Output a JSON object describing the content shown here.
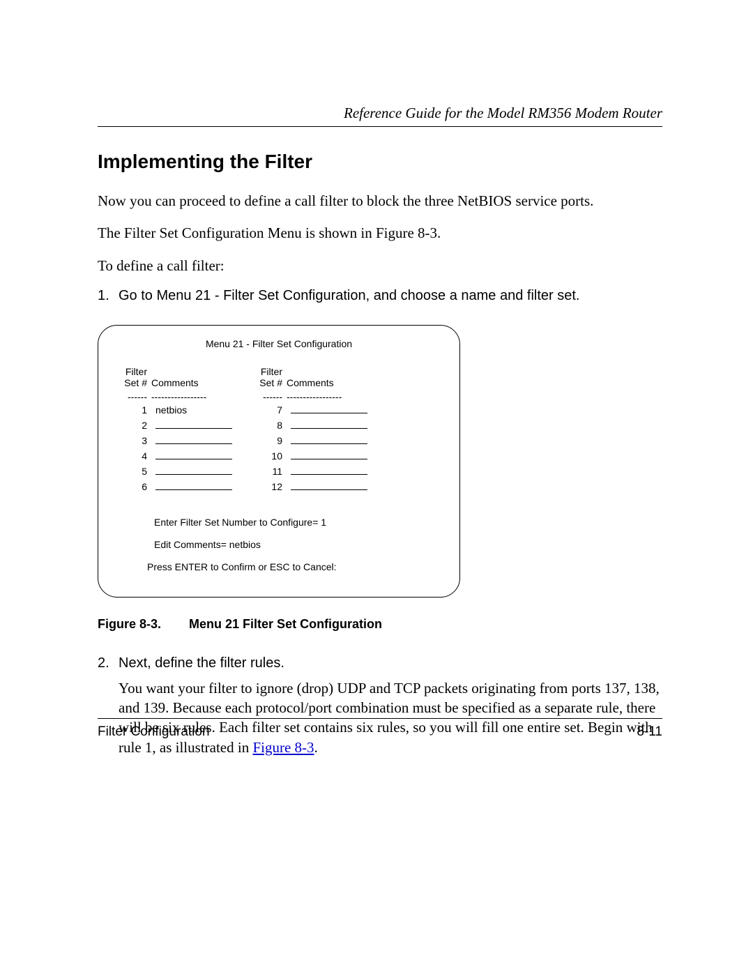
{
  "colors": {
    "text": "#000000",
    "background": "#ffffff",
    "link": "#0000cc",
    "rule": "#000000"
  },
  "typography": {
    "serif_family": "Times New Roman",
    "sans_family": "Arial",
    "body_size_pt": 16,
    "heading_size_pt": 21,
    "caption_size_pt": 13,
    "terminal_size_pt": 10
  },
  "header": {
    "running_head": "Reference Guide for the Model RM356 Modem Router"
  },
  "section": {
    "title": "Implementing the Filter",
    "para1": "Now you can proceed to define a call filter to block the three NetBIOS service ports.",
    "para2": "The Filter Set Configuration Menu is shown in Figure 8-3.",
    "para3": "To define a call filter:"
  },
  "steps": {
    "s1_num": "1.",
    "s1_text": "Go to Menu 21 - Filter Set Configuration, and choose a name and filter set.",
    "s2_num": "2.",
    "s2_text": "Next, define the filter rules.",
    "s2_detail_a": "You want your filter to ignore (drop) UDP and TCP packets originating from ports 137, 138, and 139. Because each protocol/port combination must be specified as a separate rule, there will be six rules. Each filter set contains six rules, so you will fill one entire set. Begin with rule 1, as illustrated in ",
    "s2_detail_link": "Figure 8-3",
    "s2_detail_b": "."
  },
  "figure": {
    "caption_label": "Figure 8-3.",
    "caption_text": "Menu 21 Filter Set Configuration",
    "terminal": {
      "title": "Menu 21 - Filter Set Configuration",
      "col_hdr_set": "Filter\nSet #",
      "col_hdr_set_line1": "Filter",
      "col_hdr_set_line2": "Set #",
      "col_hdr_comments": "Comments",
      "dashes_set": "------",
      "dashes_com": "-----------------",
      "left_rows": [
        {
          "n": "1",
          "v": "netbios"
        },
        {
          "n": "2",
          "v": ""
        },
        {
          "n": "3",
          "v": ""
        },
        {
          "n": "4",
          "v": ""
        },
        {
          "n": "5",
          "v": ""
        },
        {
          "n": "6",
          "v": ""
        }
      ],
      "right_rows": [
        {
          "n": "7",
          "v": ""
        },
        {
          "n": "8",
          "v": ""
        },
        {
          "n": "9",
          "v": ""
        },
        {
          "n": "10",
          "v": ""
        },
        {
          "n": "11",
          "v": ""
        },
        {
          "n": "12",
          "v": ""
        }
      ],
      "footer1": "Enter Filter Set Number to Configure= 1",
      "footer2": "Edit Comments= netbios",
      "footer3": "Press ENTER to Confirm or ESC to Cancel:"
    }
  },
  "footer": {
    "left": "Filter Configuration",
    "right": "8-11"
  }
}
